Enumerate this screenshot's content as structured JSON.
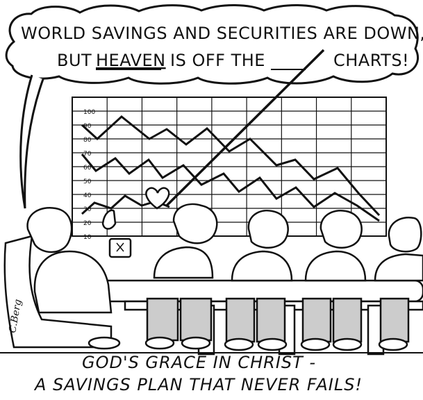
{
  "speech_bubble": {
    "line1": "WORLD SAVINGS AND SECURITIES ARE DOWN,",
    "line2_part1": "BUT",
    "line2_heaven": "HEAVEN",
    "line2_part2": "IS OFF THE",
    "line2_charts": "CHARTS!"
  },
  "chart": {
    "tick_labels": [
      "100",
      "90",
      "80",
      "70",
      "60",
      "50",
      "40",
      "30",
      "20",
      "10"
    ]
  },
  "caption": {
    "line1": "GOD'S GRACE IN CHRIST -",
    "line2": "A SAVINGS PLAN THAT NEVER FAILS!"
  },
  "signature": "C.Berg",
  "colors": {
    "ink": "#111111",
    "paper": "#ffffff"
  }
}
